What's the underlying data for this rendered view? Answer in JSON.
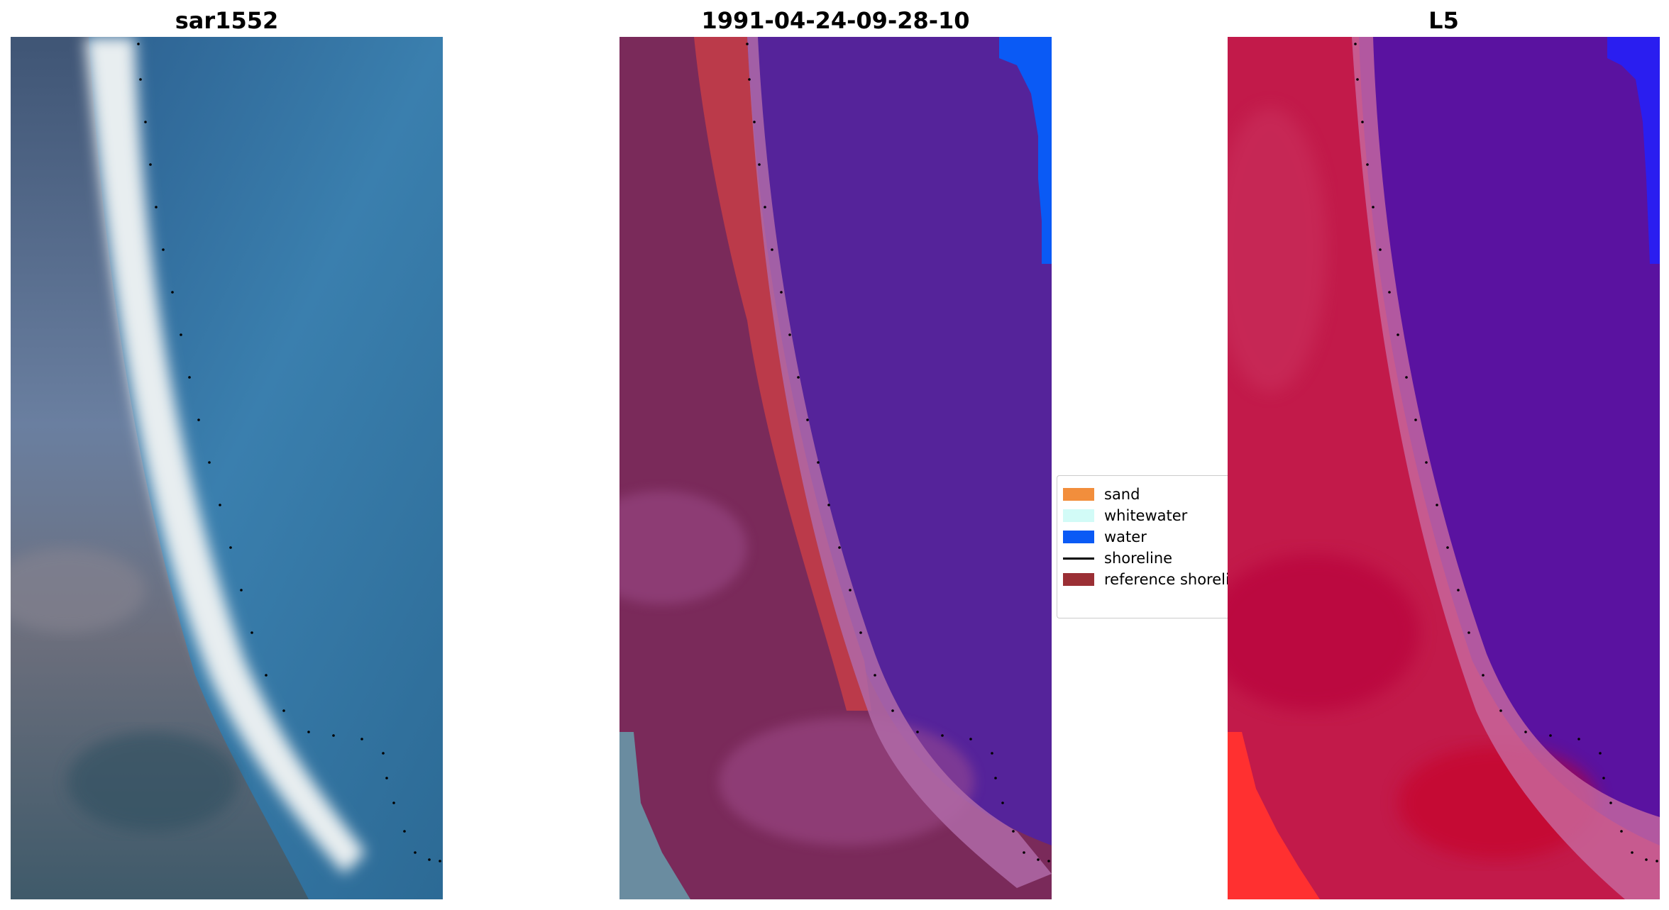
{
  "panels": [
    {
      "title": "sar1552"
    },
    {
      "title": "1991-04-24-09-28-10"
    },
    {
      "title": "L5"
    }
  ],
  "legend": {
    "items": [
      {
        "label": "sand",
        "color": "#f28e3c",
        "kind": "patch"
      },
      {
        "label": "whitewater",
        "color": "#d2fbf7",
        "kind": "patch"
      },
      {
        "label": "water",
        "color": "#0a5af5",
        "kind": "patch"
      },
      {
        "label": "shoreline",
        "color": "#000000",
        "kind": "line"
      },
      {
        "label": "reference shoreli",
        "color": "#9b2f35",
        "kind": "patch"
      }
    ]
  }
}
